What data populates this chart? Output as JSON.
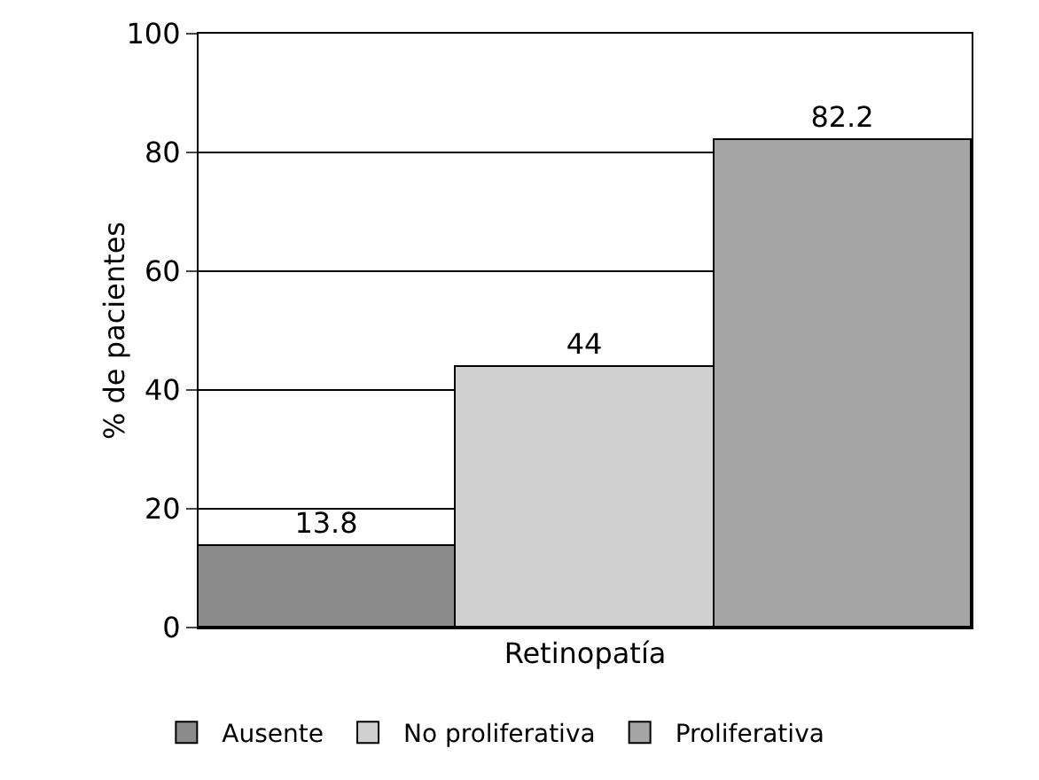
{
  "chart_data": {
    "type": "bar",
    "ylabel": "% de pacientes",
    "categories": [
      "Retinopatía"
    ],
    "series": [
      {
        "name": "Ausente",
        "color": "#8c8c8c",
        "values": [
          13.8
        ]
      },
      {
        "name": "No proliferativa",
        "color": "#d0d0d0",
        "values": [
          44
        ]
      },
      {
        "name": "Proliferativa",
        "color": "#a6a6a6",
        "values": [
          82.2
        ]
      }
    ],
    "ylim": [
      0,
      100
    ],
    "yticks": [
      0,
      20,
      40,
      60,
      80,
      100
    ],
    "grid": "y",
    "legend": "bottom",
    "data_labels": true
  }
}
